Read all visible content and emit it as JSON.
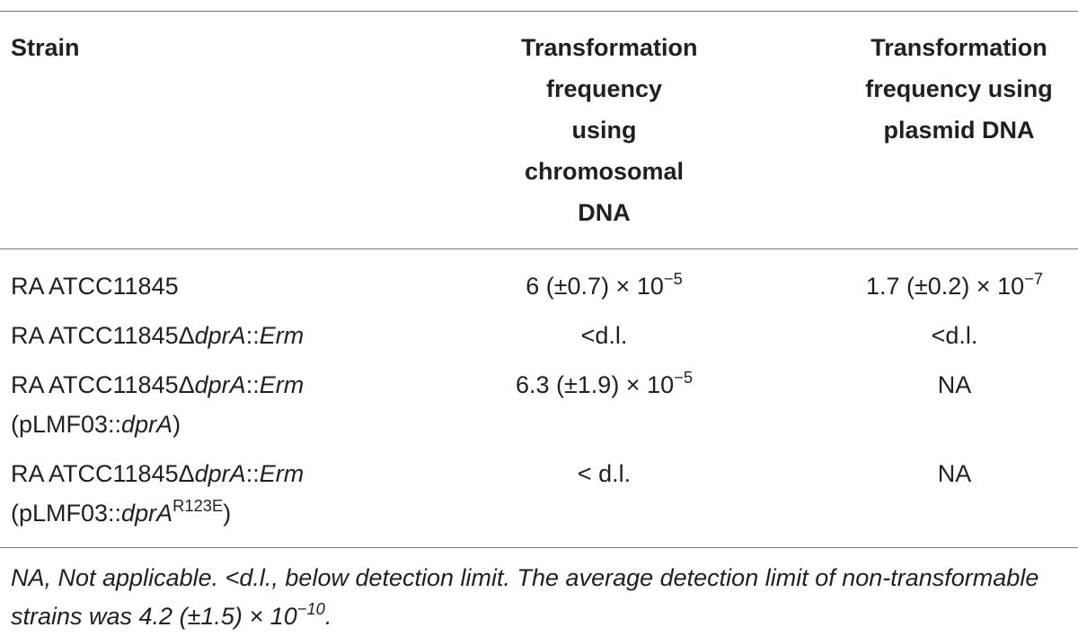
{
  "table": {
    "header": [
      "Strain",
      "Transformation frequency using chromosomal DNA",
      "Transformation frequency using plasmid DNA"
    ],
    "rows": [
      [
        [
          "RA ATCC11845"
        ],
        [
          "6 (±0.7) × 10",
          "−5"
        ],
        [
          "1.7 (±0.2) × 10",
          "−7"
        ]
      ],
      [
        [
          "RA ATCC11845Δ",
          "dprA",
          "::",
          "Erm"
        ],
        [
          "<d.l."
        ],
        [
          "<d.l."
        ]
      ],
      [
        [
          "RA ATCC11845Δ",
          "dprA",
          "::",
          "Erm",
          "(pLMF03::",
          "dprA",
          ")"
        ],
        [
          "6.3 (±1.9) × 10",
          "−5"
        ],
        [
          "NA"
        ]
      ],
      [
        [
          "RA ATCC11845Δ",
          "dprA",
          "::",
          "Erm",
          "(pLMF03::",
          "dprA",
          "R123E",
          ")"
        ],
        [
          "< d.l."
        ],
        [
          "NA"
        ]
      ]
    ]
  },
  "footnote": [
    "NA, Not applicable. <d.l., below detection limit. The average detection limit of non-transformable strains was 4.2 (±1.5) × 10",
    "−10",
    "."
  ]
}
